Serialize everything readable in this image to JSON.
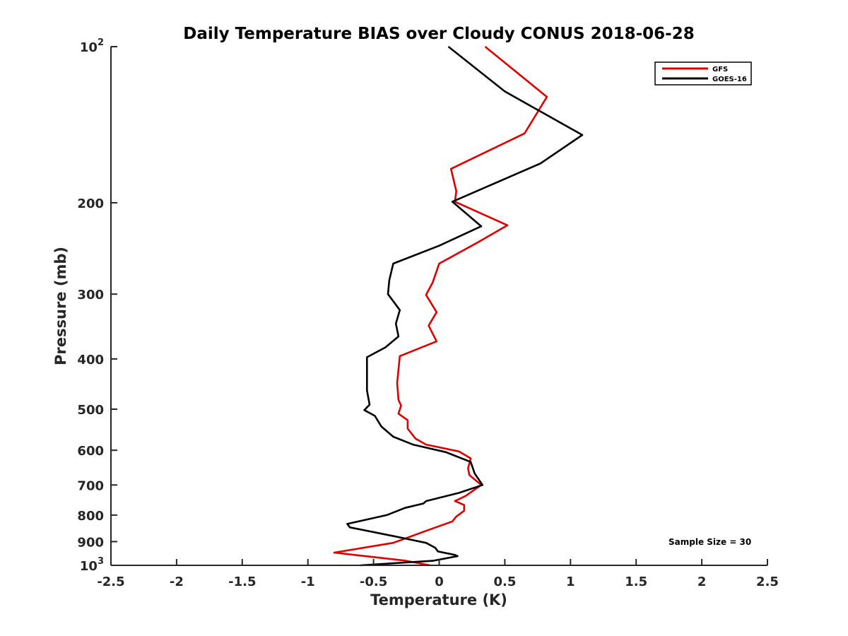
{
  "chart_data": {
    "type": "line",
    "title": "Daily Temperature BIAS over Cloudy CONUS 2018-06-28",
    "xlabel": "Temperature (K)",
    "ylabel": "Pressure (mb)",
    "xlim": [
      -2.5,
      2.5
    ],
    "ylim": [
      100,
      1000
    ],
    "y_scale": "log",
    "y_reversed": true,
    "grid": false,
    "legend_position": "top-right",
    "x_ticks": [
      -2.5,
      -2,
      -1.5,
      -1,
      -0.5,
      0,
      0.5,
      1,
      1.5,
      2,
      2.5
    ],
    "x_tick_labels": [
      "-2.5",
      "-2",
      "-1.5",
      "-1",
      "-0.5",
      "0",
      "0.5",
      "1",
      "1.5",
      "2",
      "2.5"
    ],
    "y_ticks": [
      {
        "value": 100,
        "base": "10",
        "exp": "2"
      },
      {
        "value": 200,
        "label": "200"
      },
      {
        "value": 300,
        "label": "300"
      },
      {
        "value": 400,
        "label": "400"
      },
      {
        "value": 500,
        "label": "500"
      },
      {
        "value": 600,
        "label": "600"
      },
      {
        "value": 700,
        "label": "700"
      },
      {
        "value": 800,
        "label": "800"
      },
      {
        "value": 900,
        "label": "900"
      },
      {
        "value": 1000,
        "base": "10",
        "exp": "3"
      }
    ],
    "annotation": "Sample Size = 30",
    "series": [
      {
        "name": "GFS",
        "color": "#e00000",
        "points": [
          [
            0.35,
            100
          ],
          [
            0.82,
            125
          ],
          [
            0.65,
            147
          ],
          [
            0.09,
            172
          ],
          [
            0.13,
            190
          ],
          [
            0.12,
            199
          ],
          [
            0.52,
            221
          ],
          [
            0.3,
            238
          ],
          [
            0.0,
            262
          ],
          [
            -0.05,
            285
          ],
          [
            -0.1,
            301
          ],
          [
            -0.02,
            325
          ],
          [
            -0.08,
            345
          ],
          [
            -0.02,
            370
          ],
          [
            -0.3,
            395
          ],
          [
            -0.32,
            445
          ],
          [
            -0.31,
            480
          ],
          [
            -0.29,
            492
          ],
          [
            -0.31,
            510
          ],
          [
            -0.24,
            525
          ],
          [
            -0.24,
            545
          ],
          [
            -0.18,
            570
          ],
          [
            -0.1,
            585
          ],
          [
            0.15,
            603
          ],
          [
            0.24,
            622
          ],
          [
            0.22,
            650
          ],
          [
            0.23,
            670
          ],
          [
            0.32,
            700
          ],
          [
            0.2,
            735
          ],
          [
            0.12,
            752
          ],
          [
            0.19,
            765
          ],
          [
            0.19,
            785
          ],
          [
            0.13,
            805
          ],
          [
            0.1,
            823
          ],
          [
            -0.1,
            858
          ],
          [
            -0.35,
            905
          ],
          [
            -0.8,
            945
          ],
          [
            -0.25,
            980
          ],
          [
            -0.07,
            1000
          ]
        ]
      },
      {
        "name": "GOES-16",
        "color": "#000000",
        "points": [
          [
            0.07,
            100
          ],
          [
            0.5,
            122
          ],
          [
            1.09,
            148
          ],
          [
            0.77,
            168
          ],
          [
            0.1,
            199
          ],
          [
            0.32,
            222
          ],
          [
            0.0,
            242
          ],
          [
            -0.35,
            262
          ],
          [
            -0.38,
            282
          ],
          [
            -0.39,
            300
          ],
          [
            -0.3,
            322
          ],
          [
            -0.33,
            342
          ],
          [
            -0.31,
            362
          ],
          [
            -0.41,
            380
          ],
          [
            -0.55,
            397
          ],
          [
            -0.55,
            430
          ],
          [
            -0.55,
            460
          ],
          [
            -0.53,
            490
          ],
          [
            -0.57,
            502
          ],
          [
            -0.49,
            515
          ],
          [
            -0.44,
            540
          ],
          [
            -0.35,
            565
          ],
          [
            -0.2,
            585
          ],
          [
            0.05,
            605
          ],
          [
            0.24,
            632
          ],
          [
            0.27,
            665
          ],
          [
            0.33,
            700
          ],
          [
            0.15,
            725
          ],
          [
            -0.1,
            752
          ],
          [
            -0.12,
            760
          ],
          [
            -0.26,
            775
          ],
          [
            -0.4,
            800
          ],
          [
            -0.7,
            832
          ],
          [
            -0.68,
            845
          ],
          [
            -0.33,
            880
          ],
          [
            -0.1,
            905
          ],
          [
            -0.03,
            925
          ],
          [
            -0.01,
            940
          ],
          [
            0.12,
            955
          ],
          [
            0.14,
            960
          ],
          [
            -0.05,
            980
          ],
          [
            -0.6,
            1000
          ]
        ]
      }
    ]
  }
}
